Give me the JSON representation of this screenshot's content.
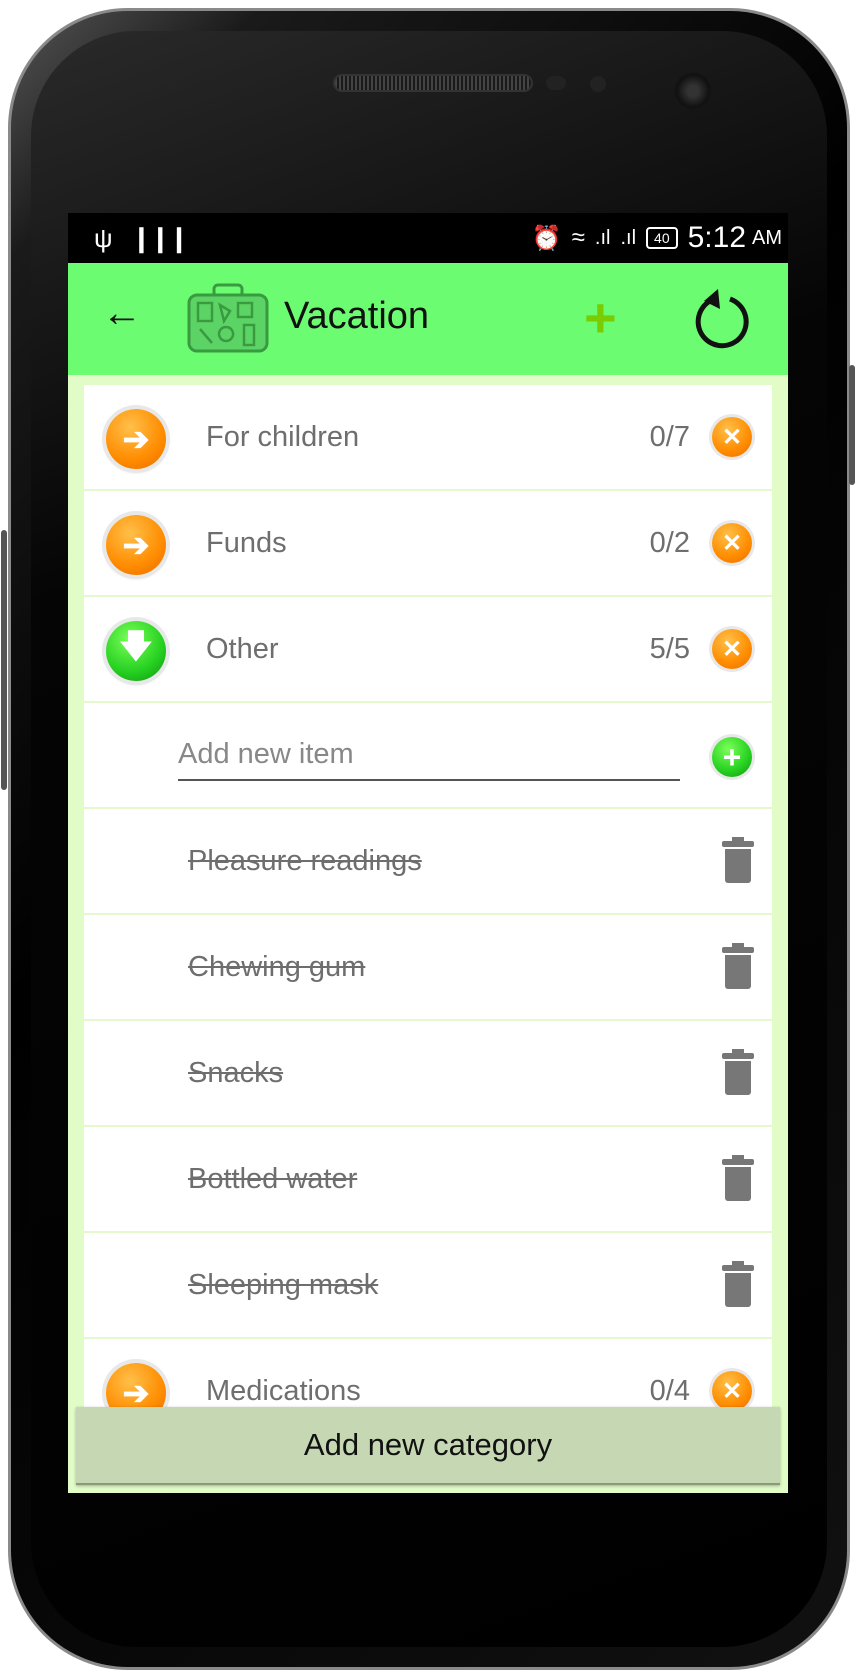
{
  "status_bar": {
    "time": "5:12",
    "ampm": "AM",
    "battery": "40",
    "left_icons": [
      "usb-icon",
      "barcode-icon"
    ],
    "right_icons": [
      "alarm-icon",
      "wifi-icon",
      "signal-icon",
      "signal-icon",
      "battery-icon"
    ]
  },
  "app_bar": {
    "title": "Vacation",
    "back_icon": "arrow-left-icon",
    "logo": "suitcase-icon",
    "add_icon": "plus-icon",
    "reset_icon": "refresh-icon"
  },
  "colors": {
    "app_bar": "#6cfc72",
    "background": "#e2fcc8",
    "orange": "#ff8c00",
    "green": "#25d020",
    "button": "#c5d8b3"
  },
  "categories": [
    {
      "name": "For children",
      "count": "0/7",
      "state": "collapsed"
    },
    {
      "name": "Funds",
      "count": "0/2",
      "state": "collapsed"
    },
    {
      "name": "Other",
      "count": "5/5",
      "state": "expanded"
    }
  ],
  "add_item": {
    "placeholder": "Add new item",
    "value": ""
  },
  "items": [
    {
      "name": "Pleasure readings",
      "checked": true
    },
    {
      "name": "Chewing gum",
      "checked": true
    },
    {
      "name": "Snacks",
      "checked": true
    },
    {
      "name": "Bottled water",
      "checked": true
    },
    {
      "name": "Sleeping mask",
      "checked": true
    }
  ],
  "last_category": {
    "name": "Medications",
    "count": "0/4",
    "state": "collapsed"
  },
  "add_category_label": "Add new category"
}
